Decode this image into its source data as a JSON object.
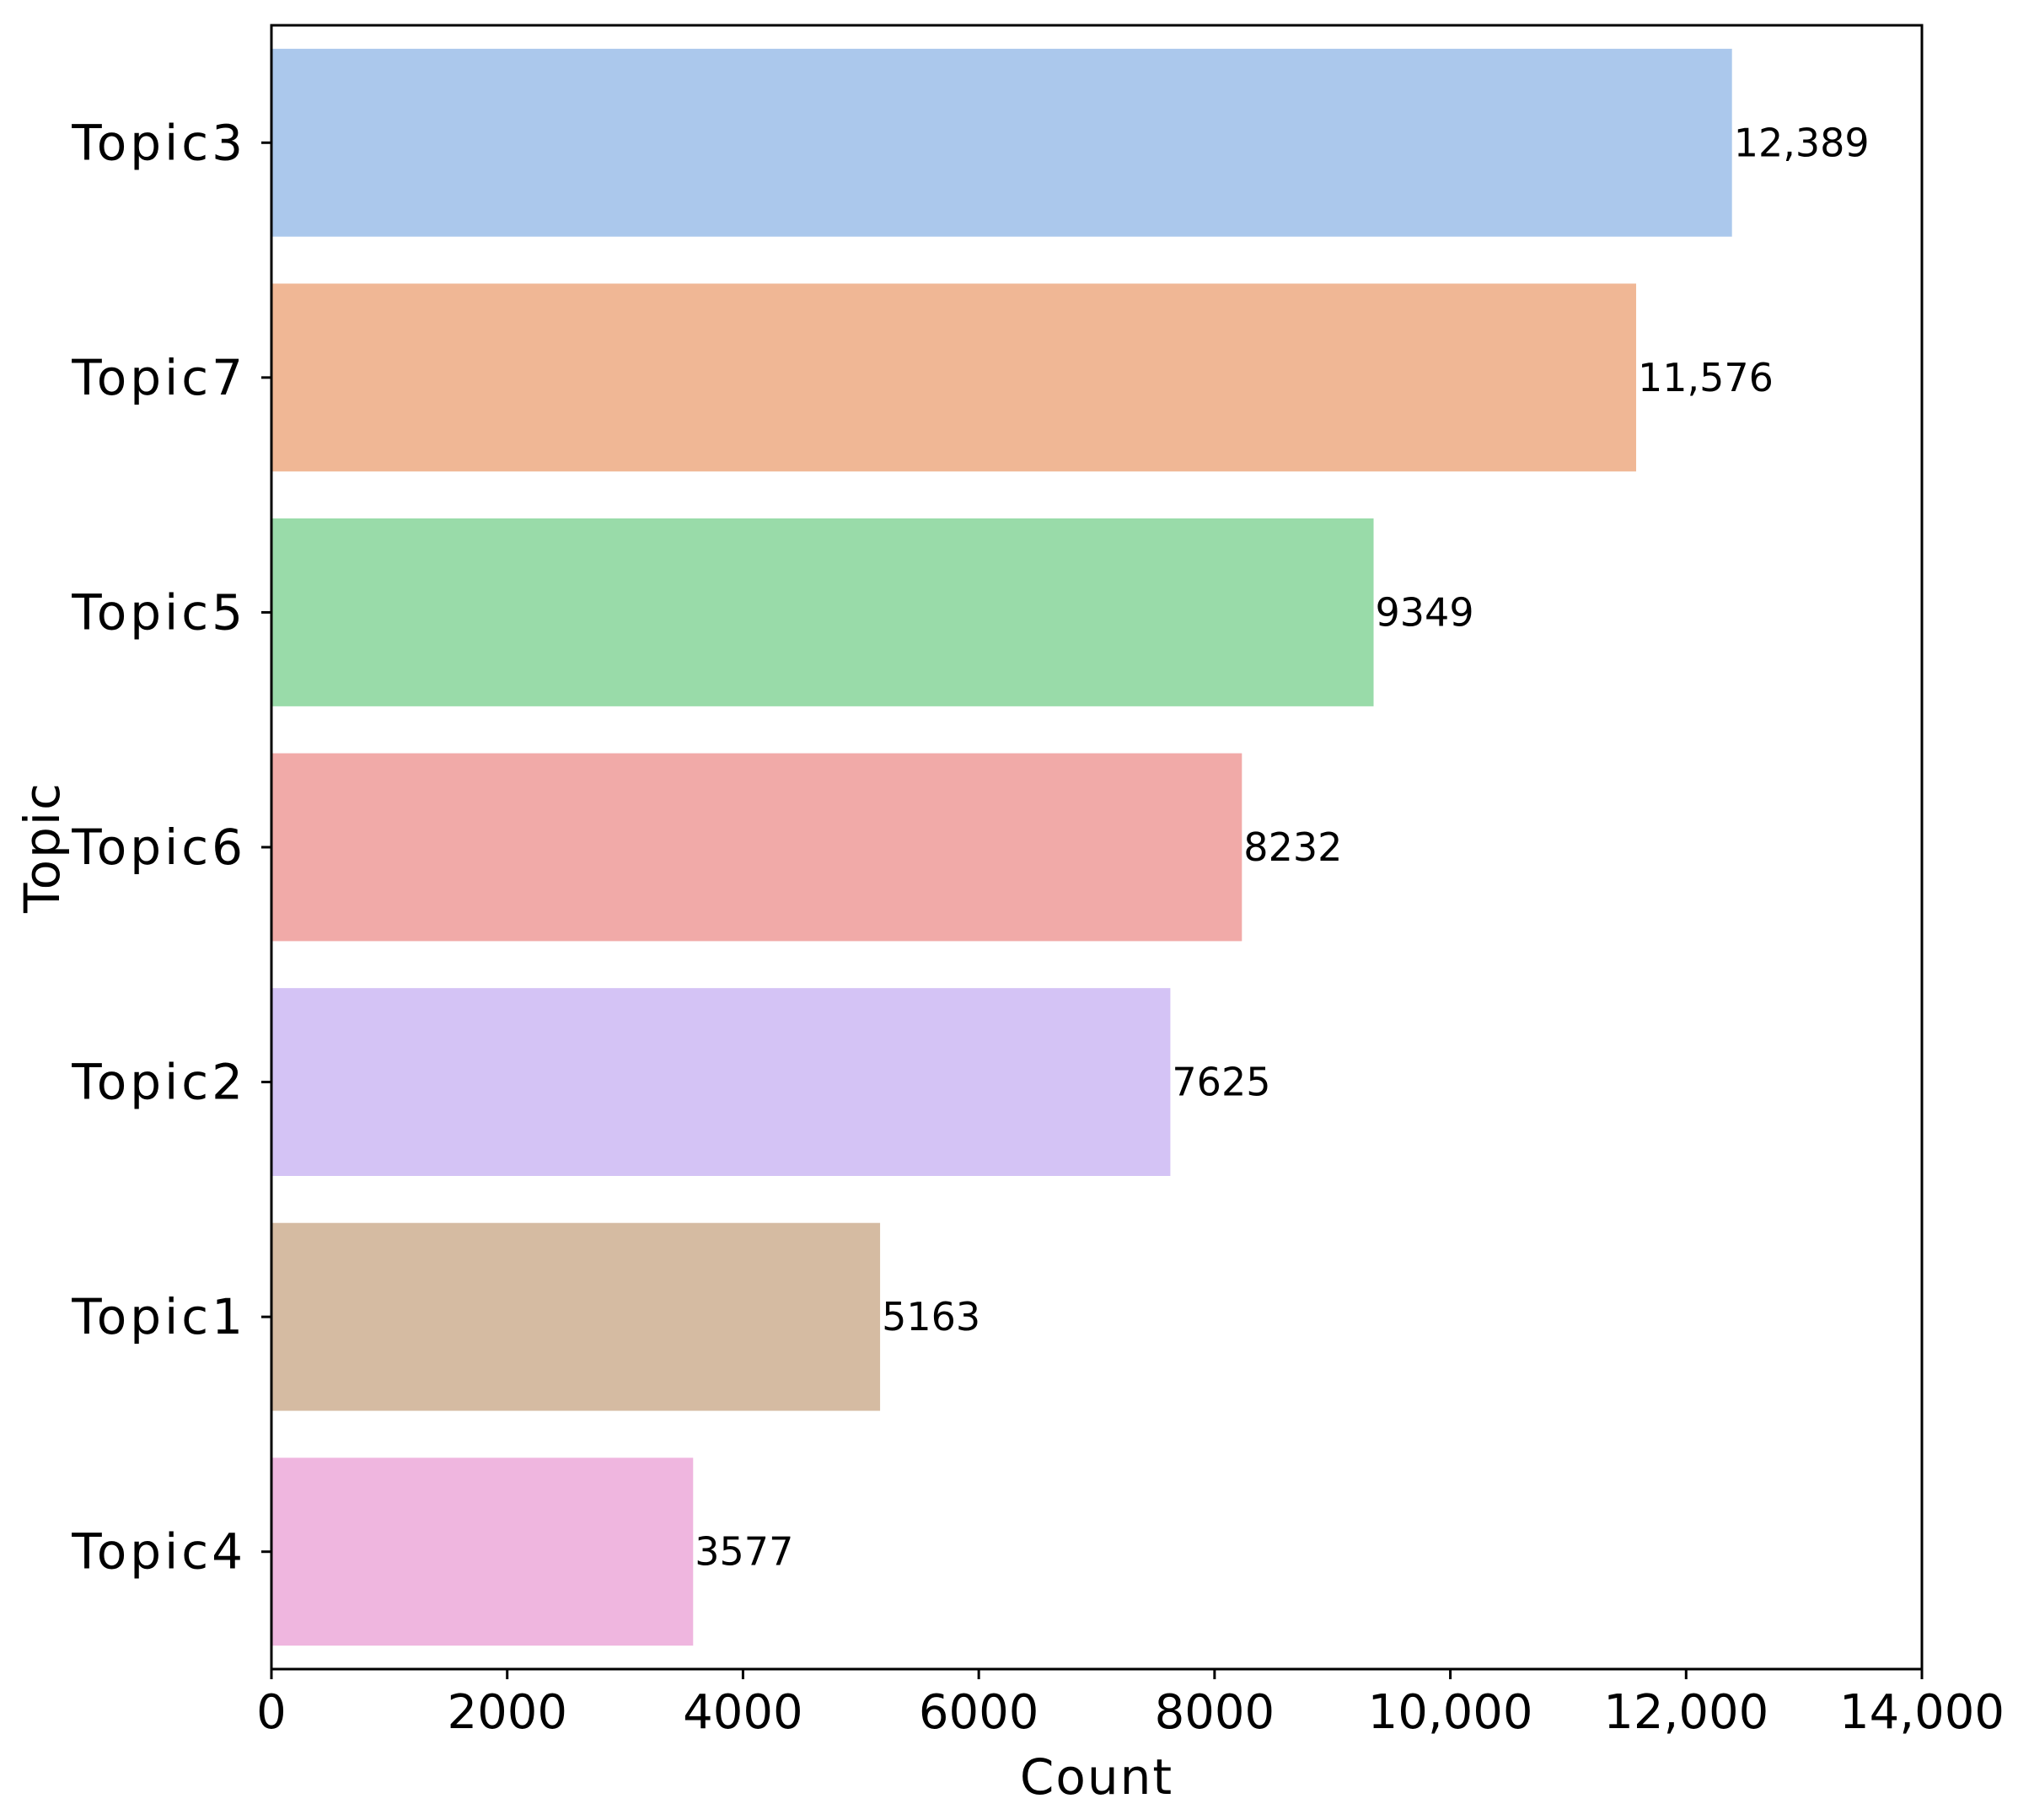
{
  "chart_data": {
    "type": "bar",
    "orientation": "horizontal",
    "title": "",
    "xlabel": "Count",
    "ylabel": "Topic",
    "categories": [
      "Topic3",
      "Topic7",
      "Topic5",
      "Topic6",
      "Topic2",
      "Topic1",
      "Topic4"
    ],
    "values": [
      12389,
      11576,
      9349,
      8232,
      7625,
      5163,
      3577
    ],
    "value_labels": [
      "12,389",
      "11,576",
      "9349",
      "8232",
      "7625",
      "5163",
      "3577"
    ],
    "colors": [
      "#abc8ec",
      "#f0b795",
      "#99dba9",
      "#f1aaa8",
      "#d4c3f5",
      "#d5bba2",
      "#efb6df"
    ],
    "xlim": [
      0,
      14000
    ],
    "xticks": [
      0,
      2000,
      4000,
      6000,
      8000,
      10000,
      12000,
      14000
    ],
    "xtick_labels": [
      "0",
      "2000",
      "4000",
      "6000",
      "8000",
      "10,000",
      "12,000",
      "14,000"
    ],
    "grid": false,
    "legend": "none"
  }
}
